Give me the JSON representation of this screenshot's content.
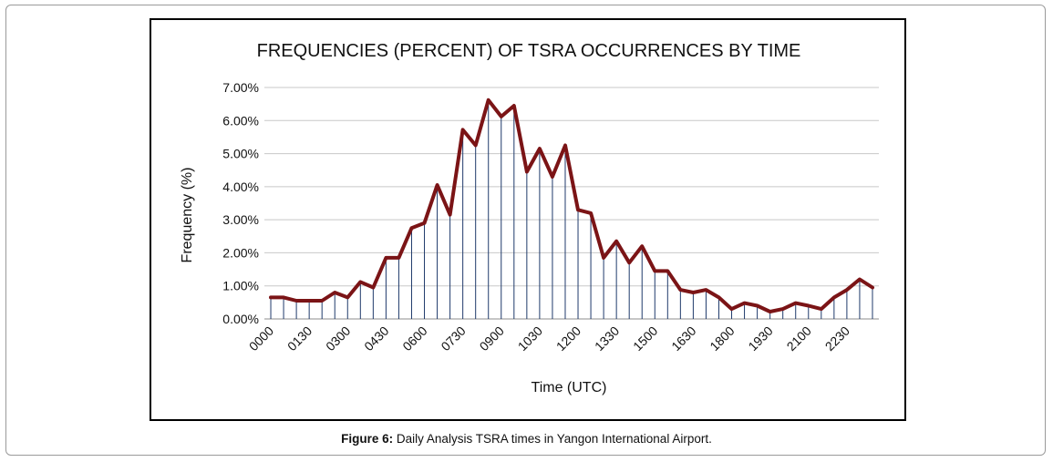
{
  "figure": {
    "caption_label": "Figure 6:",
    "caption_text": " Daily Analysis TSRA times in Yangon International Airport."
  },
  "chart_data": {
    "type": "line",
    "title": "FREQUENCIES (PERCENT) OF TSRA OCCURRENCES  BY TIME",
    "xlabel": "Time (UTC)",
    "ylabel": "Frequency (%)",
    "ylim": [
      0,
      7
    ],
    "y_ticks": [
      "0.00%",
      "1.00%",
      "2.00%",
      "3.00%",
      "4.00%",
      "5.00%",
      "6.00%",
      "7.00%"
    ],
    "x_tick_labels": [
      "0000",
      "0130",
      "0300",
      "0430",
      "0600",
      "0730",
      "0900",
      "1030",
      "1200",
      "1330",
      "1500",
      "1630",
      "1800",
      "1930",
      "2100",
      "2230"
    ],
    "grid": "horizontal",
    "drop_lines": true,
    "line_color": "#7b1416",
    "drop_line_color": "#1f3a6b",
    "grid_color": "#c8c8c8",
    "x": [
      "0000",
      "0030",
      "0100",
      "0130",
      "0200",
      "0230",
      "0300",
      "0330",
      "0400",
      "0430",
      "0500",
      "0530",
      "0600",
      "0630",
      "0700",
      "0730",
      "0800",
      "0830",
      "0900",
      "0930",
      "1000",
      "1030",
      "1100",
      "1130",
      "1200",
      "1230",
      "1300",
      "1330",
      "1400",
      "1430",
      "1500",
      "1530",
      "1600",
      "1630",
      "1700",
      "1730",
      "1800",
      "1830",
      "1900",
      "1930",
      "2000",
      "2030",
      "2100",
      "2130",
      "2200",
      "2230",
      "2300",
      "2330"
    ],
    "values": [
      0.65,
      0.65,
      0.55,
      0.55,
      0.55,
      0.8,
      0.65,
      1.12,
      0.95,
      1.85,
      1.85,
      2.75,
      2.9,
      4.05,
      3.15,
      5.72,
      5.25,
      6.62,
      6.12,
      6.45,
      4.45,
      5.15,
      4.3,
      5.25,
      3.3,
      3.2,
      1.85,
      2.35,
      1.7,
      2.2,
      1.45,
      1.45,
      0.88,
      0.8,
      0.88,
      0.65,
      0.3,
      0.48,
      0.4,
      0.22,
      0.3,
      0.48,
      0.4,
      0.3,
      0.65,
      0.88,
      1.2,
      0.95
    ]
  }
}
